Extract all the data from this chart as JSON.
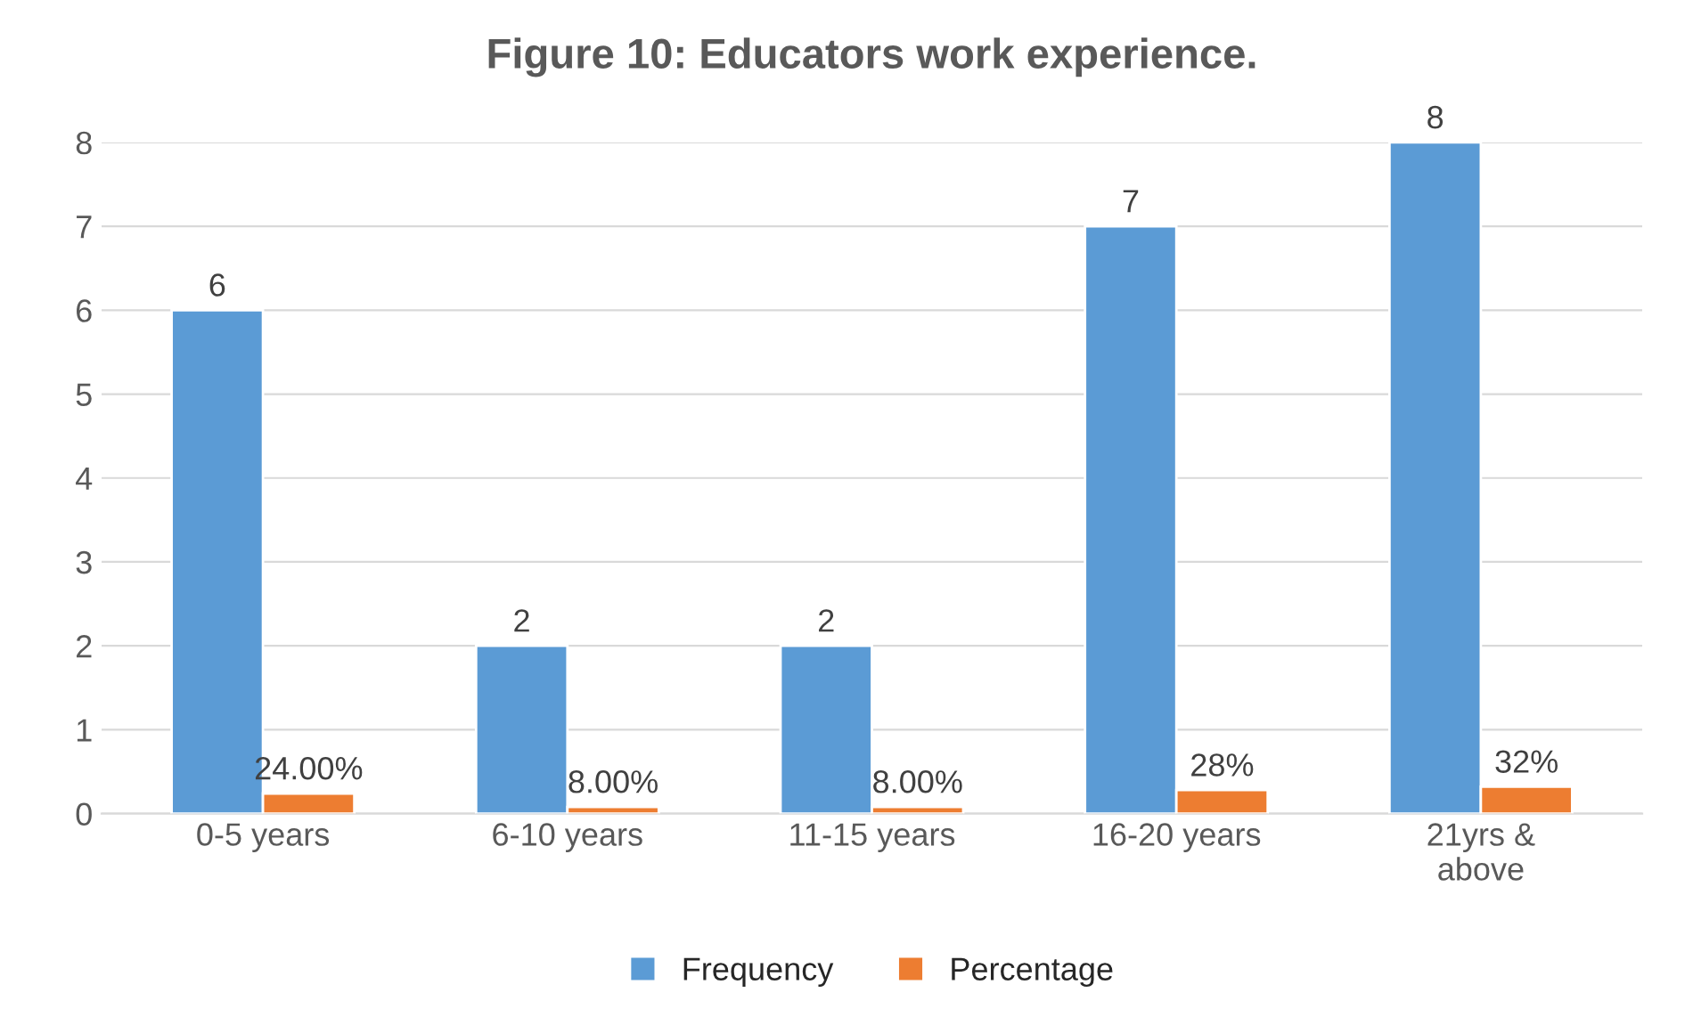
{
  "chart_data": {
    "type": "bar",
    "title": "Figure 10: Educators work experience.",
    "categories": [
      "0-5 years",
      "6-10 years",
      "11-15 years",
      "16-20 years",
      "21yrs &\nabove"
    ],
    "series": [
      {
        "name": "Frequency",
        "color": "#5b9bd5",
        "values": [
          6,
          2,
          2,
          7,
          8
        ],
        "value_labels": [
          "6",
          "2",
          "2",
          "7",
          "8"
        ]
      },
      {
        "name": "Percentage",
        "color": "#ed7d31",
        "values": [
          0.24,
          0.08,
          0.08,
          0.28,
          0.32
        ],
        "value_labels": [
          "24.00%",
          "8.00%",
          "8.00%",
          "28%",
          "32%"
        ]
      }
    ],
    "ylim": [
      0,
      8
    ],
    "yticks": [
      0,
      1,
      2,
      3,
      4,
      5,
      6,
      7,
      8
    ],
    "grid": "y",
    "legend": "bottom"
  }
}
